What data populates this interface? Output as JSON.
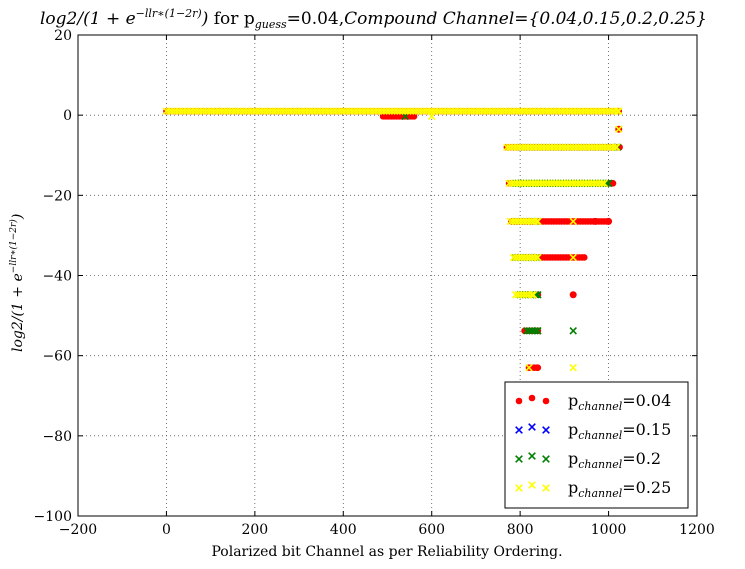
{
  "chart_data": {
    "type": "scatter",
    "title_main": "log2/(1 + e",
    "title_exp": "−llr∗(1−2r)",
    "title_close": ")",
    "title_rest": " for p",
    "title_guess_sub": "guess",
    "title_guess_val": "=0.04,",
    "title_compound": "Compound Channel",
    "title_set": "={0.04,0.15,0.2,0.25}",
    "xlabel": "Polarized bit Channel as per Reliability Ordering.",
    "ylabel_main": "log2/(1 + e",
    "ylabel_exp": "−llr∗(1−2r)",
    "ylabel_close": ")",
    "xlim": [
      -200,
      1200
    ],
    "ylim": [
      -100,
      20
    ],
    "xticks": [
      -200,
      0,
      200,
      400,
      600,
      800,
      1000,
      1200
    ],
    "yticks": [
      20,
      0,
      -20,
      -40,
      -60,
      -80,
      -100
    ],
    "grid": true,
    "legend_position": "lower-right",
    "series": [
      {
        "label_prefix": "p",
        "label_sub": "channel",
        "label_value": "=0.04",
        "marker": "circle",
        "color": "#ff0000",
        "segments": [
          {
            "y": 1,
            "x": [
              0,
              1023
            ]
          },
          {
            "y": -0.3,
            "x": [
              490,
              560
            ]
          },
          {
            "y": -8,
            "x": [
              770,
              1025
            ]
          },
          {
            "y": -17,
            "x": [
              775,
              1010
            ]
          },
          {
            "y": -26.5,
            "x": [
              780,
              1000
            ]
          },
          {
            "y": -35.5,
            "x": [
              790,
              945
            ]
          },
          {
            "y": -44.8,
            "x": [
              810,
              840
            ]
          },
          {
            "y": -53.8,
            "x": [
              810,
              840
            ]
          },
          {
            "y": -63,
            "x": [
              820,
              840
            ]
          }
        ],
        "points": [
          {
            "x": 920,
            "y": -44.8
          },
          {
            "x": 1023,
            "y": -3.5
          },
          {
            "x": 970,
            "y": -26.5
          },
          {
            "x": 1000,
            "y": -26.5
          }
        ]
      },
      {
        "label_prefix": "p",
        "label_sub": "channel",
        "label_value": "=0.15",
        "marker": "x",
        "color": "#0000ff",
        "segments": [],
        "points": []
      },
      {
        "label_prefix": "p",
        "label_sub": "channel",
        "label_value": "=0.2",
        "marker": "x",
        "color": "#008000",
        "segments": [
          {
            "y": -8,
            "x": [
              800,
              1020
            ]
          },
          {
            "y": -17,
            "x": [
              790,
              1000
            ]
          },
          {
            "y": -26.5,
            "x": [
              790,
              840
            ]
          },
          {
            "y": -35.5,
            "x": [
              790,
              840
            ]
          },
          {
            "y": -44.8,
            "x": [
              800,
              840
            ]
          },
          {
            "y": -53.8,
            "x": [
              815,
              840
            ]
          }
        ],
        "points": [
          {
            "x": 920,
            "y": -53.8
          },
          {
            "x": 540,
            "y": -0.3
          }
        ]
      },
      {
        "label_prefix": "p",
        "label_sub": "channel",
        "label_value": "=0.25",
        "marker": "x",
        "color": "#ffff00",
        "segments": [
          {
            "y": 1,
            "x": [
              0,
              1023
            ]
          },
          {
            "y": -8,
            "x": [
              770,
              1018
            ]
          },
          {
            "y": -17,
            "x": [
              775,
              990
            ]
          },
          {
            "y": -26.5,
            "x": [
              778,
              840
            ]
          },
          {
            "y": -35.5,
            "x": [
              785,
              840
            ]
          },
          {
            "y": -44.8,
            "x": [
              790,
              830
            ]
          }
        ],
        "points": [
          {
            "x": 920,
            "y": -35.5
          },
          {
            "x": 920,
            "y": -26.5
          },
          {
            "x": 820,
            "y": -63
          },
          {
            "x": 920,
            "y": -63
          },
          {
            "x": 1023,
            "y": -3.5
          },
          {
            "x": 600,
            "y": -0.3
          }
        ]
      }
    ]
  }
}
